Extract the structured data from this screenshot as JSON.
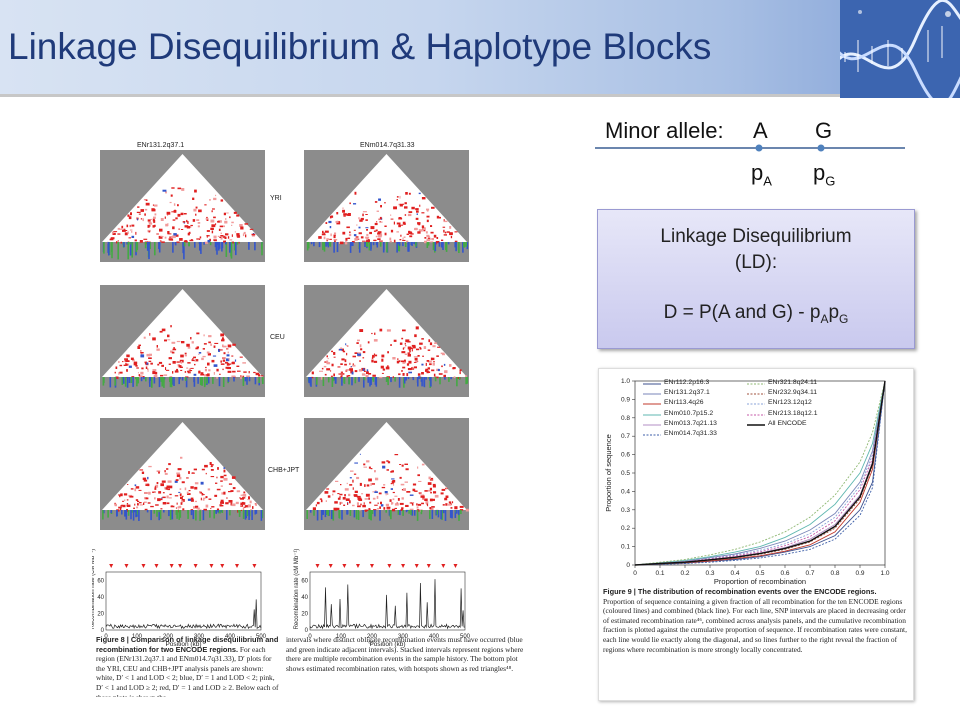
{
  "slide": {
    "title": "Linkage Disequilibrium & Haplotype Blocks"
  },
  "minor_allele": {
    "label": "Minor allele:",
    "allele_a": "A",
    "allele_g": "G",
    "freq_a_base": "p",
    "freq_a_sub": "A",
    "freq_g_base": "p",
    "freq_g_sub": "G"
  },
  "ld_box": {
    "line1": "Linkage Disequilibrium",
    "line2": "(LD):",
    "formula_main": "D = P(A and G) - p",
    "formula_sub1": "A",
    "formula_p": "p",
    "formula_sub2": "G"
  },
  "figure8": {
    "panel_left_title": "ENr131.2q37.1",
    "panel_right_title": "ENm014.7q31.33",
    "populations": [
      "YRI",
      "CEU",
      "CHB+JPT"
    ],
    "ylabel": "Recombination rate (cM Mb⁻¹)",
    "xlabel": "Position (kb)",
    "yticks": [
      "0",
      "20",
      "40",
      "60"
    ],
    "xticks": [
      "0",
      "100",
      "200",
      "300",
      "400",
      "500"
    ],
    "caption_left_bold": "Figure 8 | Comparison of linkage disequilibrium and recombination for two ENCODE regions.",
    "caption_left_rest": " For each region (ENr131.2q37.1 and ENm014.7q31.33), D′ plots for the YRI, CEU and CHB+JPT analysis panels are shown: white, D′ < 1 and LOD < 2; blue, D′ = 1 and LOD < 2; pink, D′ < 1 and LOD ≥ 2; red, D′ = 1 and LOD ≥ 2. Below each of these plots is shown the",
    "caption_right": "intervals where distinct obligate recombination events must have occurred (blue and green indicate adjacent intervals). Stacked intervals represent regions where there are multiple recombination events in the sample history. The bottom plot shows estimated recombination rates, with hotspots shown as red triangles⁴⁸."
  },
  "figure9": {
    "ylabel": "Proportion of sequence",
    "xlabel": "Proportion of recombination",
    "ticks": [
      "0",
      "0.1",
      "0.2",
      "0.3",
      "0.4",
      "0.5",
      "0.6",
      "0.7",
      "0.8",
      "0.9",
      "1.0"
    ],
    "caption_bold": "Figure 9 | The distribution of recombination events over the ENCODE regions.",
    "caption_rest": " Proportion of sequence containing a given fraction of all recombination for the ten ENCODE regions (coloured lines) and combined (black line). For each line, SNP intervals are placed in decreasing order of estimated recombination rate⁴⁶, combined across analysis panels, and the cumulative recombination fraction is plotted against the cumulative proportion of sequence. If recombination rates were constant, each line would lie exactly along the diagonal, and so lines further to the right reveal the fraction of regions where recombination is more strongly locally concentrated.",
    "legend": [
      {
        "name": "ENr112.2p16.3",
        "color": "#3b4f8c",
        "dash": ""
      },
      {
        "name": "ENr131.2q37.1",
        "color": "#7a86b8",
        "dash": ""
      },
      {
        "name": "ENr113.4q26",
        "color": "#c0392b",
        "dash": ""
      },
      {
        "name": "ENm010.7p15.2",
        "color": "#5fb7b0",
        "dash": ""
      },
      {
        "name": "ENm013.7q21.13",
        "color": "#b38fc4",
        "dash": ""
      },
      {
        "name": "ENm014.7q31.33",
        "color": "#3c5ea8",
        "dash": "2,1.5"
      },
      {
        "name": "ENr321.8q24.11",
        "color": "#8fb873",
        "dash": "2,1.5"
      },
      {
        "name": "ENr232.9q34.11",
        "color": "#a0523d",
        "dash": "2,1.5"
      },
      {
        "name": "ENr123.12q12",
        "color": "#8aa3d8",
        "dash": "2,1.5"
      },
      {
        "name": "ENr213.18q12.1",
        "color": "#c65aa8",
        "dash": "2,1.5"
      },
      {
        "name": "All ENCODE",
        "color": "#111111",
        "dash": ""
      }
    ]
  },
  "colors": {
    "title": "#1f3a7a",
    "ld_red": "#e02020",
    "ld_blue": "#3355cc",
    "ld_green": "#44aa44",
    "hotspot": "#e02020"
  },
  "chart_data": {
    "type": "line",
    "xlabel": "Proportion of recombination",
    "ylabel": "Proportion of sequence",
    "xlim": [
      0,
      1
    ],
    "ylim": [
      0,
      1
    ],
    "x": [
      0,
      0.1,
      0.2,
      0.3,
      0.4,
      0.5,
      0.6,
      0.7,
      0.8,
      0.9,
      0.95,
      1.0
    ],
    "series": [
      {
        "name": "ENr112.2p16.3",
        "values": [
          0,
          0.005,
          0.01,
          0.02,
          0.03,
          0.045,
          0.07,
          0.1,
          0.16,
          0.3,
          0.45,
          1.0
        ]
      },
      {
        "name": "ENr131.2q37.1",
        "values": [
          0,
          0.01,
          0.02,
          0.04,
          0.06,
          0.09,
          0.13,
          0.19,
          0.28,
          0.45,
          0.62,
          1.0
        ]
      },
      {
        "name": "ENr113.4q26",
        "values": [
          0,
          0.006,
          0.012,
          0.022,
          0.035,
          0.05,
          0.075,
          0.11,
          0.18,
          0.34,
          0.52,
          1.0
        ]
      },
      {
        "name": "ENm010.7p15.2",
        "values": [
          0,
          0.012,
          0.025,
          0.045,
          0.07,
          0.1,
          0.15,
          0.22,
          0.33,
          0.5,
          0.66,
          1.0
        ]
      },
      {
        "name": "ENm013.7q21.13",
        "values": [
          0,
          0.008,
          0.016,
          0.03,
          0.045,
          0.065,
          0.095,
          0.14,
          0.22,
          0.38,
          0.56,
          1.0
        ]
      },
      {
        "name": "ENm014.7q31.33",
        "values": [
          0,
          0.004,
          0.008,
          0.015,
          0.025,
          0.038,
          0.058,
          0.085,
          0.14,
          0.27,
          0.42,
          1.0
        ]
      },
      {
        "name": "ENr321.8q24.11",
        "values": [
          0,
          0.015,
          0.03,
          0.055,
          0.085,
          0.125,
          0.18,
          0.26,
          0.38,
          0.56,
          0.72,
          1.0
        ]
      },
      {
        "name": "ENr232.9q34.11",
        "values": [
          0,
          0.007,
          0.014,
          0.026,
          0.04,
          0.058,
          0.085,
          0.125,
          0.2,
          0.36,
          0.54,
          1.0
        ]
      },
      {
        "name": "ENr123.12q12",
        "values": [
          0,
          0.01,
          0.02,
          0.036,
          0.055,
          0.08,
          0.115,
          0.17,
          0.26,
          0.43,
          0.6,
          1.0
        ]
      },
      {
        "name": "ENr213.18q12.1",
        "values": [
          0,
          0.009,
          0.018,
          0.033,
          0.05,
          0.072,
          0.105,
          0.155,
          0.24,
          0.41,
          0.58,
          1.0
        ]
      },
      {
        "name": "All ENCODE",
        "values": [
          0,
          0.008,
          0.015,
          0.028,
          0.042,
          0.062,
          0.09,
          0.13,
          0.21,
          0.37,
          0.55,
          1.0
        ]
      }
    ]
  }
}
